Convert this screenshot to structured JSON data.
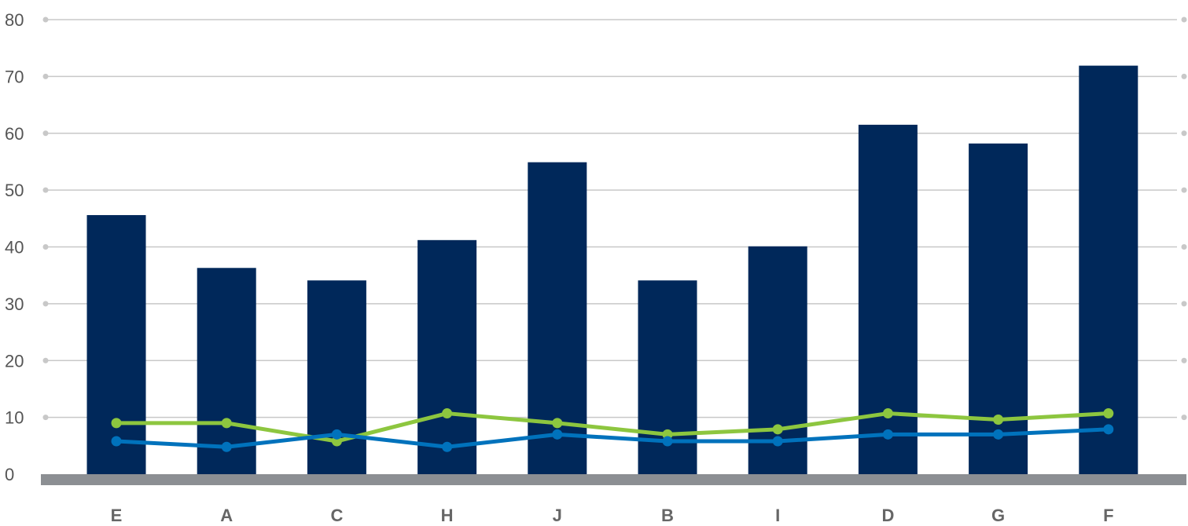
{
  "chart_data": {
    "type": "bar",
    "title": "",
    "xlabel": "",
    "ylabel": "",
    "categories": [
      "E",
      "A",
      "C",
      "H",
      "J",
      "B",
      "I",
      "D",
      "G",
      "F"
    ],
    "ylim": [
      0,
      80
    ],
    "yticks": [
      0,
      10,
      20,
      30,
      40,
      50,
      60,
      70,
      80
    ],
    "grid": true,
    "legend": "none",
    "series": [
      {
        "type": "bar",
        "color": "#00285a",
        "values": [
          45.6,
          36.3,
          34.1,
          41.2,
          54.9,
          34.1,
          40.1,
          61.5,
          58.2,
          71.9
        ]
      },
      {
        "type": "line",
        "color": "#8dc63f",
        "values": [
          9.0,
          9.0,
          5.8,
          10.7,
          9.0,
          7.0,
          7.9,
          10.7,
          9.6,
          10.7
        ]
      },
      {
        "type": "line",
        "color": "#0072bc",
        "values": [
          5.8,
          4.8,
          7.0,
          4.8,
          7.0,
          5.8,
          5.8,
          7.0,
          7.0,
          7.9
        ]
      }
    ],
    "baseline_color": "#8c8f93"
  }
}
